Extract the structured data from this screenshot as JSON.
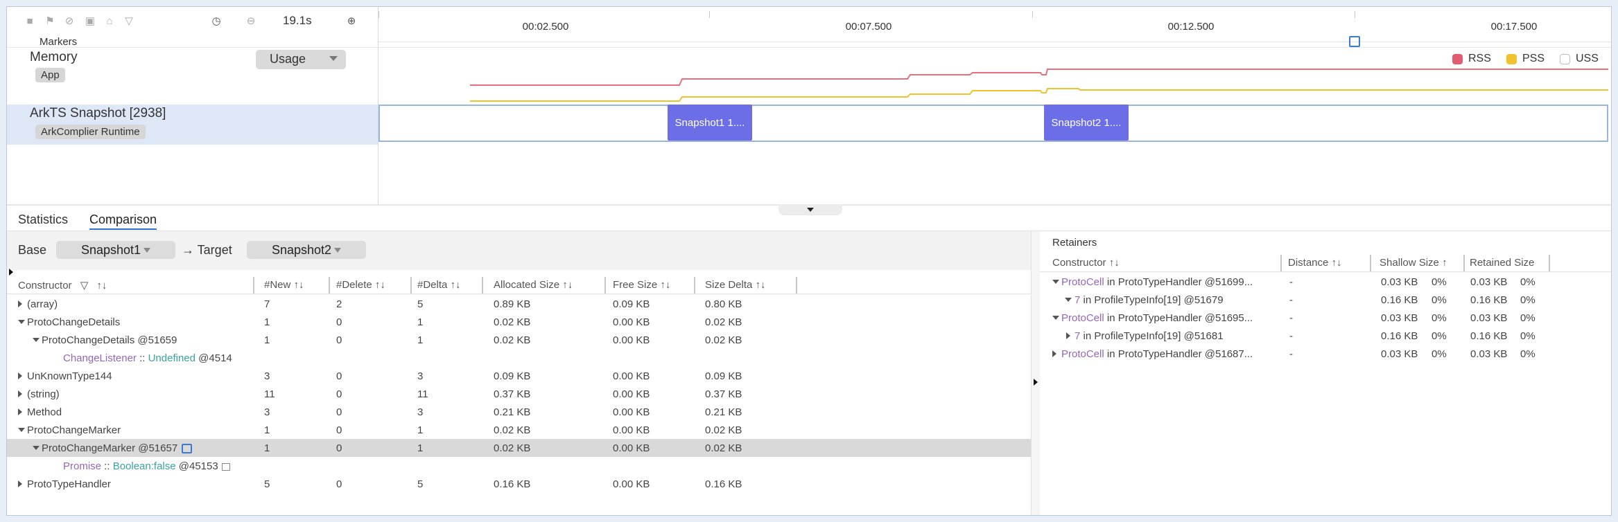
{
  "toolbar": {
    "time": "19.1s",
    "markers_label": "Markers"
  },
  "ruler": {
    "ticks": [
      "00:02.500",
      "00:07.500",
      "00:12.500",
      "00:17.500"
    ]
  },
  "memory": {
    "title": "Memory",
    "badge": "App",
    "dropdown": "Usage",
    "legend": [
      {
        "label": "RSS",
        "color": "#e05c6e"
      },
      {
        "label": "PSS",
        "color": "#f2c12e"
      },
      {
        "label": "USS",
        "color": "#ffffff"
      }
    ]
  },
  "ark": {
    "title": "ArkTS Snapshot [2938]",
    "badge": "ArkComplier Runtime",
    "snapshots": [
      "Snapshot1 1....",
      "Snapshot2 1...."
    ]
  },
  "tabs": [
    "Statistics",
    "Comparison"
  ],
  "comparison": {
    "base_label": "Base",
    "base_value": "Snapshot1",
    "target_label": "→ Target",
    "target_value": "Snapshot2",
    "columns": [
      "Constructor",
      "#New",
      "#Delete",
      "#Delta",
      "Allocated Size",
      "Free Size",
      "Size Delta"
    ],
    "sort_glyph": "↑↓",
    "rows": [
      {
        "name": "(array)",
        "new": "7",
        "delete": "2",
        "delta": "5",
        "alloc": "0.89 KB",
        "free": "0.09 KB",
        "sdelta": "0.80 KB"
      },
      {
        "name": "ProtoChangeDetails",
        "new": "1",
        "delete": "0",
        "delta": "1",
        "alloc": "0.02 KB",
        "free": "0.00 KB",
        "sdelta": "0.02 KB"
      },
      {
        "name": "ProtoChangeDetails @51659",
        "new": "1",
        "delete": "0",
        "delta": "1",
        "alloc": "0.02 KB",
        "free": "0.00 KB",
        "sdelta": "0.02 KB"
      },
      {
        "name_a": "ChangeListener",
        "name_sep": " :: ",
        "name_b": "Undefined",
        "name_c": " @4514"
      },
      {
        "name": "UnKnownType144",
        "new": "3",
        "delete": "0",
        "delta": "3",
        "alloc": "0.09 KB",
        "free": "0.00 KB",
        "sdelta": "0.09 KB"
      },
      {
        "name": "(string)",
        "new": "11",
        "delete": "0",
        "delta": "11",
        "alloc": "0.37 KB",
        "free": "0.00 KB",
        "sdelta": "0.37 KB"
      },
      {
        "name": "Method",
        "new": "3",
        "delete": "0",
        "delta": "3",
        "alloc": "0.21 KB",
        "free": "0.00 KB",
        "sdelta": "0.21 KB"
      },
      {
        "name": "ProtoChangeMarker",
        "new": "1",
        "delete": "0",
        "delta": "1",
        "alloc": "0.02 KB",
        "free": "0.00 KB",
        "sdelta": "0.02 KB"
      },
      {
        "name": "ProtoChangeMarker @51657",
        "new": "1",
        "delete": "0",
        "delta": "1",
        "alloc": "0.02 KB",
        "free": "0.00 KB",
        "sdelta": "0.02 KB"
      },
      {
        "name_a": "Promise",
        "name_sep": " :: ",
        "name_b": "Boolean:false",
        "name_c": " @45153"
      },
      {
        "name": "ProtoTypeHandler",
        "new": "5",
        "delete": "0",
        "delta": "5",
        "alloc": "0.16 KB",
        "free": "0.00 KB",
        "sdelta": "0.16 KB"
      }
    ]
  },
  "retainers": {
    "title": "Retainers",
    "columns": [
      "Constructor",
      "Distance",
      "Shallow Size",
      "Retained Size"
    ],
    "sort_glyph": "↑↓",
    "sort_glyph_single": "↑",
    "rows": [
      {
        "a": "ProtoCell",
        "b": " in ProtoTypeHandler @51699...",
        "distance": "-",
        "shallow": "0.03 KB",
        "shallow_pct": "0%",
        "retained": "0.03 KB",
        "retained_pct": "0%"
      },
      {
        "a": "7",
        "b": " in ProfileTypeInfo[19] @51679",
        "distance": "-",
        "shallow": "0.16 KB",
        "shallow_pct": "0%",
        "retained": "0.16 KB",
        "retained_pct": "0%"
      },
      {
        "a": "ProtoCell",
        "b": " in ProtoTypeHandler @51695...",
        "distance": "-",
        "shallow": "0.03 KB",
        "shallow_pct": "0%",
        "retained": "0.03 KB",
        "retained_pct": "0%"
      },
      {
        "a": "7",
        "b": " in ProfileTypeInfo[19] @51681",
        "distance": "-",
        "shallow": "0.16 KB",
        "shallow_pct": "0%",
        "retained": "0.16 KB",
        "retained_pct": "0%"
      },
      {
        "a": "ProtoCell",
        "b": " in ProtoTypeHandler @51687...",
        "distance": "-",
        "shallow": "0.03 KB",
        "shallow_pct": "0%",
        "retained": "0.03 KB",
        "retained_pct": "0%"
      }
    ]
  }
}
